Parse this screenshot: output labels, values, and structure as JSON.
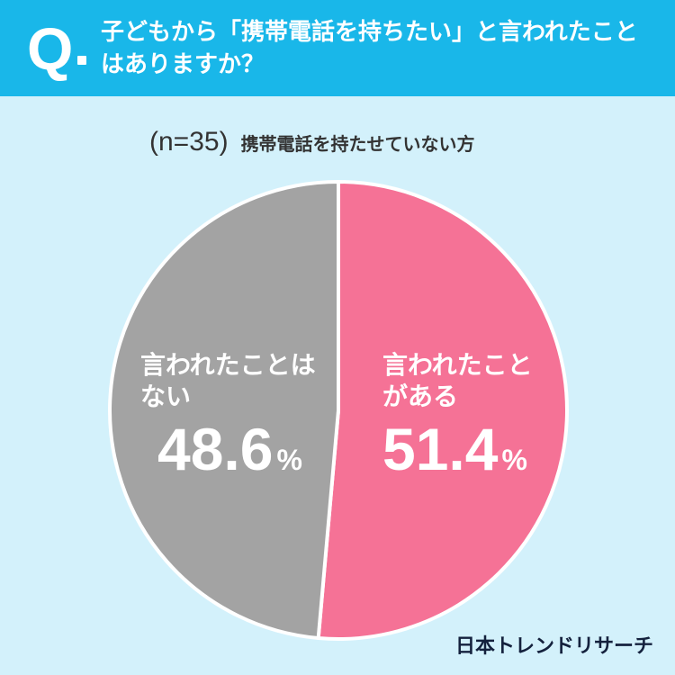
{
  "header": {
    "q_mark": "Q",
    "question": "子どもから「携帯電話を持ちたい」と言われたことはありますか？"
  },
  "subtitle": {
    "n": "(n=35)",
    "desc": "携帯電話を持たせていない方"
  },
  "chart_data": {
    "type": "pie",
    "title": "子どもから「携帯電話を持ちたい」と言われたことはありますか？",
    "slices": [
      {
        "label_lines": [
          "言われたこと",
          "がある"
        ],
        "value": 51.4,
        "value_text": "51.4",
        "unit": "%",
        "color": "#f57296"
      },
      {
        "label_lines": [
          "言われたことは",
          "ない"
        ],
        "value": 48.6,
        "value_text": "48.6",
        "unit": "%",
        "color": "#a3a3a3"
      }
    ]
  },
  "logo": "日本トレンドリサーチ",
  "colors": {
    "header": "#19b7e9",
    "background": "#d3f1fb",
    "pink": "#f57296",
    "gray": "#a3a3a3"
  }
}
